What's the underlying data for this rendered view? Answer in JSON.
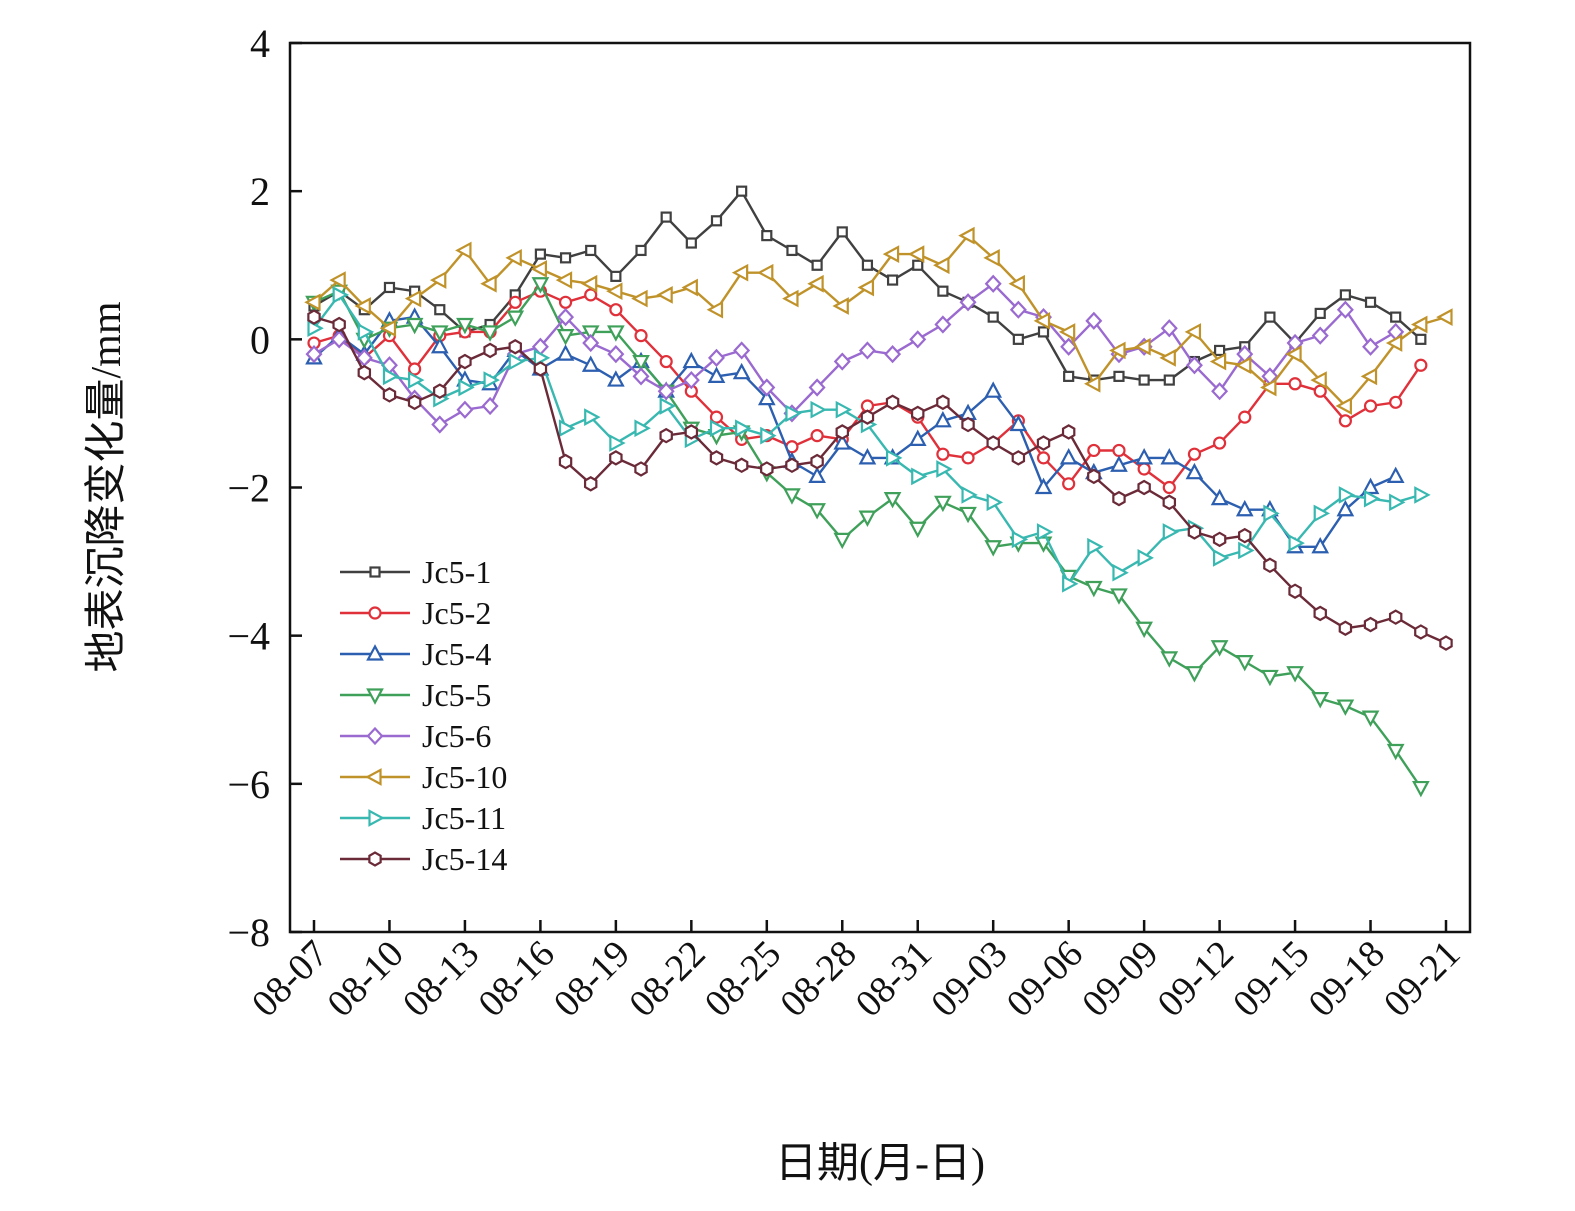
{
  "chart_data": {
    "type": "line",
    "title": "",
    "xlabel": "日期(月-日)",
    "ylabel": "地表沉降变化量/mm",
    "ylim": [
      -8,
      4
    ],
    "yticks": [
      4,
      2,
      0,
      -2,
      -4,
      -6,
      -8
    ],
    "ytick_labels": [
      "4",
      "2",
      "0",
      "−2",
      "−4",
      "−6",
      "−8"
    ],
    "xlim": [
      "08-07",
      "09-21"
    ],
    "x_tick_labels": [
      "08-07",
      "08-10",
      "08-13",
      "08-16",
      "08-19",
      "08-22",
      "08-25",
      "08-28",
      "08-31",
      "09-03",
      "09-06",
      "09-09",
      "09-12",
      "09-15",
      "09-18",
      "09-21"
    ],
    "x": [
      "08-07",
      "08-08",
      "08-09",
      "08-10",
      "08-11",
      "08-12",
      "08-13",
      "08-14",
      "08-15",
      "08-16",
      "08-17",
      "08-18",
      "08-19",
      "08-20",
      "08-21",
      "08-22",
      "08-23",
      "08-24",
      "08-25",
      "08-26",
      "08-27",
      "08-28",
      "08-29",
      "08-30",
      "08-31",
      "09-01",
      "09-02",
      "09-03",
      "09-04",
      "09-05",
      "09-06",
      "09-07",
      "09-08",
      "09-09",
      "09-10",
      "09-11",
      "09-12",
      "09-13",
      "09-14",
      "09-15",
      "09-16",
      "09-17",
      "09-18",
      "09-19",
      "09-20",
      "09-21"
    ],
    "grid": false,
    "legend_position": "lower-left",
    "series": [
      {
        "name": "Jc5-1",
        "color": "#404040",
        "marker": "square",
        "values": [
          0.45,
          0.65,
          0.4,
          0.7,
          0.65,
          0.4,
          0.1,
          0.2,
          0.6,
          1.15,
          1.1,
          1.2,
          0.85,
          1.2,
          1.65,
          1.3,
          1.6,
          2.0,
          1.4,
          1.2,
          1.0,
          1.45,
          1.0,
          0.8,
          1.0,
          0.65,
          0.5,
          0.3,
          0.0,
          0.1,
          -0.5,
          -0.55,
          -0.5,
          -0.55,
          -0.55,
          -0.3,
          -0.15,
          -0.1,
          0.3,
          -0.05,
          0.35,
          0.6,
          0.5,
          0.3,
          0.0,
          null
        ]
      },
      {
        "name": "Jc5-2",
        "color": "#e0303a",
        "marker": "circle",
        "values": [
          -0.05,
          0.05,
          -0.25,
          0.05,
          -0.4,
          0.05,
          0.1,
          0.1,
          0.5,
          0.65,
          0.5,
          0.6,
          0.4,
          0.05,
          -0.3,
          -0.7,
          -1.05,
          -1.35,
          -1.3,
          -1.45,
          -1.3,
          -1.35,
          -0.9,
          -0.85,
          -1.05,
          -1.55,
          -1.6,
          -1.4,
          -1.1,
          -1.6,
          -1.95,
          -1.5,
          -1.5,
          -1.75,
          -2.0,
          -1.55,
          -1.4,
          -1.05,
          -0.6,
          -0.6,
          -0.7,
          -1.1,
          -0.9,
          -0.85,
          -0.35,
          null
        ]
      },
      {
        "name": "Jc5-4",
        "color": "#2c5fb0",
        "marker": "triangle-up",
        "values": [
          -0.25,
          0.05,
          -0.2,
          0.25,
          0.3,
          -0.1,
          -0.55,
          -0.6,
          -0.15,
          -0.4,
          -0.2,
          -0.35,
          -0.55,
          -0.3,
          -0.7,
          -0.3,
          -0.5,
          -0.45,
          -0.8,
          -1.65,
          -1.85,
          -1.4,
          -1.6,
          -1.6,
          -1.35,
          -1.1,
          -1.0,
          -0.7,
          -1.15,
          -2.0,
          -1.6,
          -1.8,
          -1.7,
          -1.6,
          -1.6,
          -1.8,
          -2.15,
          -2.3,
          -2.3,
          -2.8,
          -2.8,
          -2.3,
          -2.0,
          -1.85,
          null,
          null
        ]
      },
      {
        "name": "Jc5-5",
        "color": "#3fa05a",
        "marker": "triangle-down",
        "values": [
          0.5,
          0.65,
          0.0,
          0.15,
          0.2,
          0.1,
          0.2,
          0.1,
          0.3,
          0.75,
          0.05,
          0.1,
          0.1,
          -0.3,
          -0.7,
          -1.2,
          -1.3,
          -1.25,
          -1.8,
          -2.1,
          -2.3,
          -2.7,
          -2.4,
          -2.15,
          -2.55,
          -2.2,
          -2.35,
          -2.8,
          -2.75,
          -2.75,
          -3.2,
          -3.35,
          -3.45,
          -3.9,
          -4.3,
          -4.5,
          -4.15,
          -4.35,
          -4.55,
          -4.5,
          -4.85,
          -4.95,
          -5.1,
          -5.55,
          -6.05,
          null
        ]
      },
      {
        "name": "Jc5-6",
        "color": "#9a6ad0",
        "marker": "diamond",
        "values": [
          -0.2,
          0.0,
          -0.25,
          -0.35,
          -0.8,
          -1.15,
          -0.95,
          -0.9,
          -0.2,
          -0.1,
          0.3,
          -0.05,
          -0.2,
          -0.5,
          -0.7,
          -0.55,
          -0.25,
          -0.15,
          -0.65,
          -1.0,
          -0.65,
          -0.3,
          -0.15,
          -0.2,
          0.0,
          0.2,
          0.5,
          0.75,
          0.4,
          0.3,
          -0.1,
          0.25,
          -0.2,
          -0.1,
          0.15,
          -0.35,
          -0.7,
          -0.2,
          -0.5,
          -0.05,
          0.05,
          0.4,
          -0.1,
          0.1,
          null,
          null
        ]
      },
      {
        "name": "Jc5-10",
        "color": "#c0922a",
        "marker": "triangle-left",
        "values": [
          0.5,
          0.8,
          0.45,
          0.15,
          0.55,
          0.8,
          1.2,
          0.75,
          1.1,
          0.95,
          0.8,
          0.75,
          0.65,
          0.55,
          0.6,
          0.7,
          0.4,
          0.9,
          0.9,
          0.55,
          0.75,
          0.45,
          0.7,
          1.15,
          1.15,
          1.0,
          1.4,
          1.1,
          0.75,
          0.25,
          0.1,
          -0.6,
          -0.15,
          -0.1,
          -0.25,
          0.1,
          -0.3,
          -0.35,
          -0.65,
          -0.2,
          -0.55,
          -0.9,
          -0.5,
          -0.05,
          0.2,
          0.3
        ]
      },
      {
        "name": "Jc5-11",
        "color": "#38b8b0",
        "marker": "triangle-right",
        "values": [
          0.15,
          0.6,
          0.1,
          -0.5,
          -0.55,
          -0.8,
          -0.65,
          -0.55,
          -0.3,
          -0.25,
          -1.2,
          -1.05,
          -1.4,
          -1.2,
          -0.9,
          -1.35,
          -1.2,
          -1.2,
          -1.3,
          -1.0,
          -0.95,
          -0.95,
          -1.15,
          -1.6,
          -1.85,
          -1.75,
          -2.1,
          -2.2,
          -2.7,
          -2.6,
          -3.3,
          -2.8,
          -3.15,
          -2.95,
          -2.6,
          -2.55,
          -2.95,
          -2.85,
          -2.35,
          -2.75,
          -2.35,
          -2.1,
          -2.15,
          -2.2,
          -2.1,
          null
        ]
      },
      {
        "name": "Jc5-14",
        "color": "#6b2a38",
        "marker": "hexagon",
        "values": [
          0.3,
          0.2,
          -0.45,
          -0.75,
          -0.85,
          -0.7,
          -0.3,
          -0.15,
          -0.1,
          -0.4,
          -1.65,
          -1.95,
          -1.6,
          -1.75,
          -1.3,
          -1.25,
          -1.6,
          -1.7,
          -1.75,
          -1.7,
          -1.65,
          -1.25,
          -1.05,
          -0.85,
          -1.0,
          -0.85,
          -1.15,
          -1.4,
          -1.6,
          -1.4,
          -1.25,
          -1.85,
          -2.15,
          -2.0,
          -2.2,
          -2.6,
          -2.7,
          -2.65,
          -3.05,
          -3.4,
          -3.7,
          -3.9,
          -3.85,
          -3.75,
          -3.95,
          -4.1
        ]
      }
    ]
  }
}
